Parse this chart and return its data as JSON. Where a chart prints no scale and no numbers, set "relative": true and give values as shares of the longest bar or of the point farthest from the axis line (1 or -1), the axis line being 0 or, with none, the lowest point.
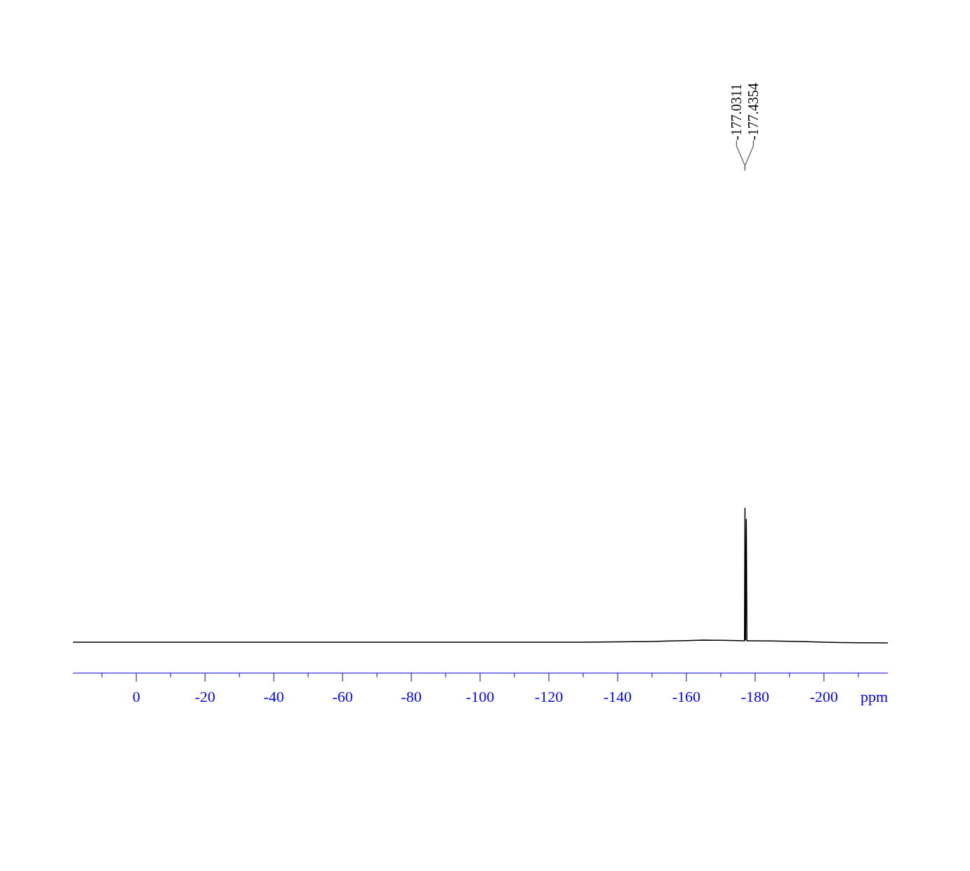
{
  "chart_data": {
    "type": "line",
    "relative": true,
    "xlabel": "ppm",
    "xlim": [
      18.4,
      -218.6
    ],
    "xticks": [
      0,
      -20,
      -40,
      -60,
      -80,
      -100,
      -120,
      -140,
      -160,
      -180,
      -200
    ],
    "grid": false,
    "line_style": "solid",
    "series": [
      {
        "color": "#000000",
        "x": [
          18.4,
          10,
          0,
          -10,
          -20,
          -30,
          -40,
          -50,
          -60,
          -70,
          -80,
          -90,
          -100,
          -110,
          -120,
          -130,
          -140,
          -150,
          -155,
          -160,
          -165,
          -170,
          -175,
          -176.9,
          -177.0311,
          -177.2,
          -177.4354,
          -177.6,
          -180,
          -185,
          -190,
          -195,
          -200,
          -205,
          -210,
          -218.6
        ],
        "values": [
          0.187,
          0.187,
          0.187,
          0.187,
          0.187,
          0.187,
          0.187,
          0.187,
          0.187,
          0.187,
          0.187,
          0.187,
          0.187,
          0.187,
          0.187,
          0.187,
          0.189,
          0.192,
          0.195,
          0.197,
          0.2,
          0.199,
          0.197,
          0.196,
          1,
          0.2,
          0.932,
          0.196,
          0.196,
          0.195,
          0.193,
          0.19,
          0.187,
          0.185,
          0.184,
          0.183
        ]
      }
    ],
    "annotations": [
      "-177.0311",
      "-177.4354"
    ]
  }
}
